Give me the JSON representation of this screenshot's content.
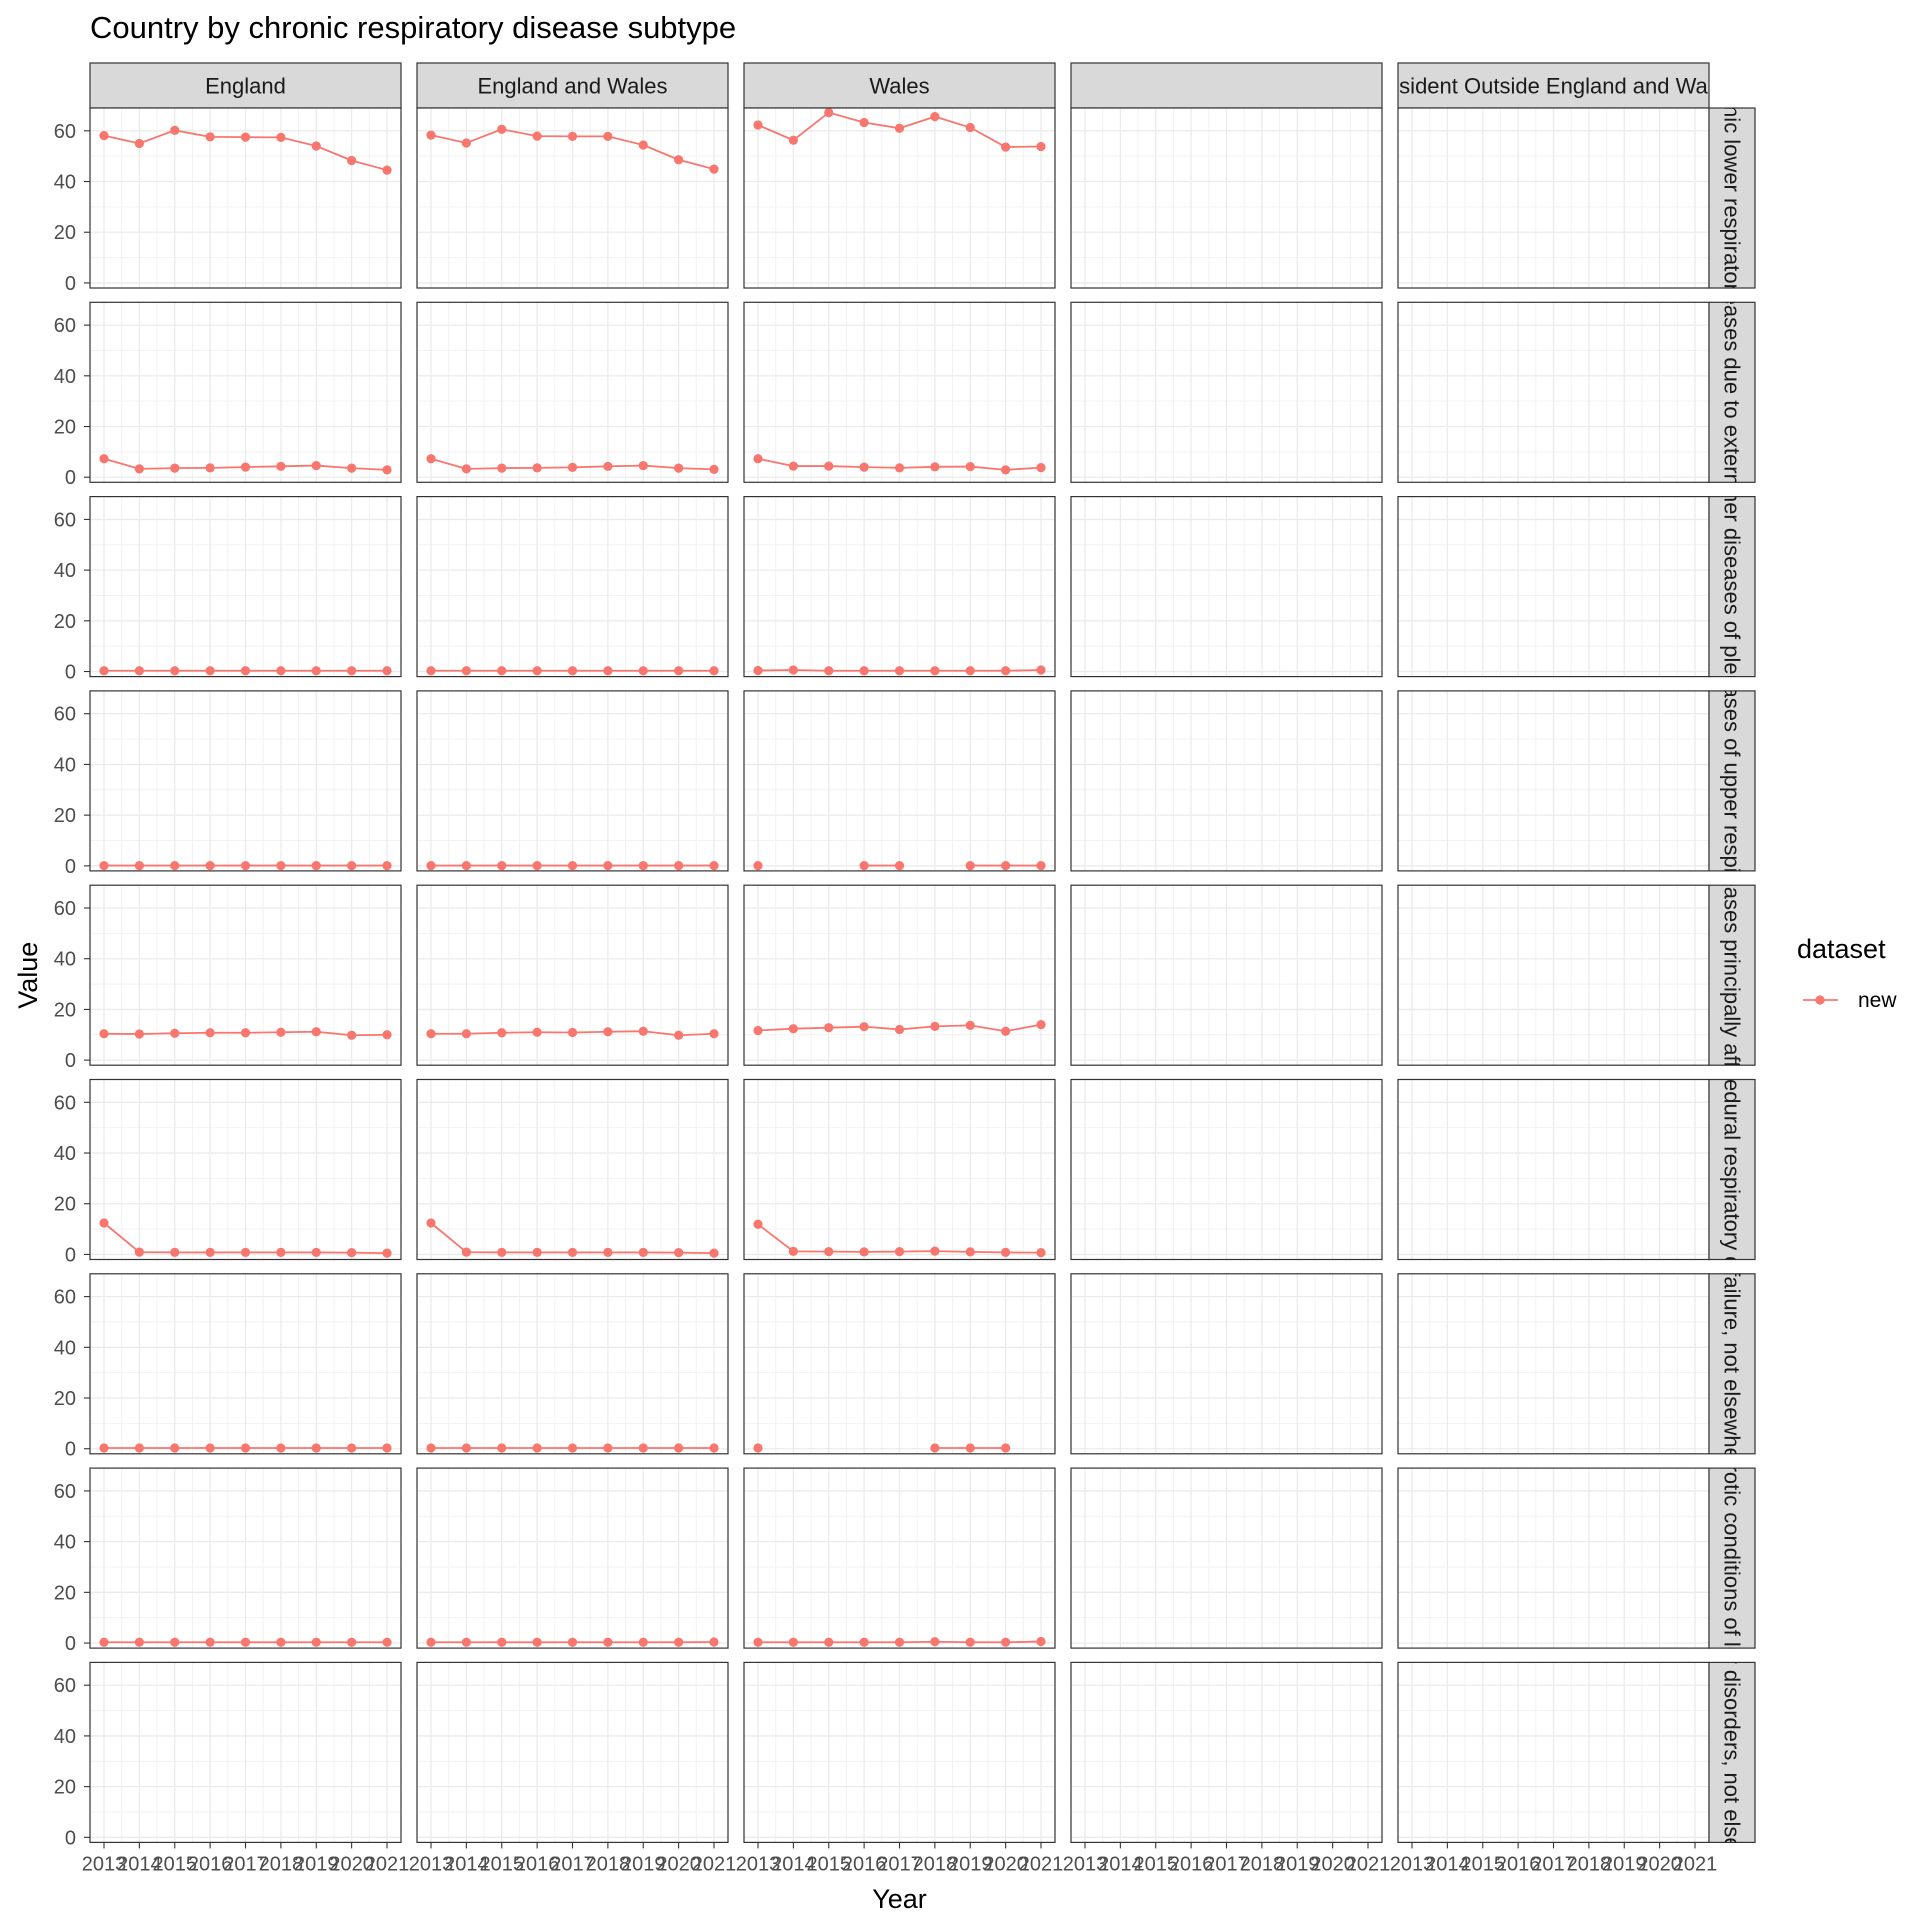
{
  "chart_data": {
    "type": "line",
    "title": "Country by chronic respiratory disease subtype",
    "xlabel": "Year",
    "ylabel": "Value",
    "x": [
      2013,
      2014,
      2015,
      2016,
      2017,
      2018,
      2019,
      2020,
      2021
    ],
    "x_tick_labels": [
      "2013",
      "2014",
      "2015",
      "2016",
      "2017",
      "2018",
      "2019",
      "2020",
      "2021"
    ],
    "y_ticks": [
      0,
      20,
      40,
      60
    ],
    "ylim": [
      -2,
      69
    ],
    "grid": true,
    "legend": {
      "title": "dataset",
      "position": "right",
      "entries": [
        "new"
      ]
    },
    "series_color": "#F8766D",
    "columns": [
      "England",
      "England and Wales",
      "Wales",
      "",
      "Resident Outside England and Wales"
    ],
    "rows": [
      {
        "label": "Other chronic lower respiratory diseases",
        "values": [
          [
            58.1,
            55.0,
            60.2,
            57.6,
            57.5,
            57.4,
            54.0,
            48.3,
            44.5
          ],
          [
            58.3,
            55.2,
            60.6,
            57.9,
            57.8,
            57.8,
            54.4,
            48.6,
            44.9
          ],
          [
            62.3,
            56.3,
            67.2,
            63.3,
            61.0,
            65.6,
            61.3,
            53.6,
            53.8
          ],
          [
            null,
            null,
            null,
            null,
            null,
            null,
            null,
            null,
            null
          ],
          [
            null,
            null,
            null,
            null,
            null,
            null,
            null,
            null,
            null
          ]
        ]
      },
      {
        "label": "Lung diseases due to external agents",
        "values": [
          [
            7.3,
            3.3,
            3.6,
            3.7,
            4.0,
            4.3,
            4.6,
            3.6,
            2.9
          ],
          [
            7.3,
            3.3,
            3.6,
            3.7,
            3.9,
            4.3,
            4.6,
            3.6,
            3.1
          ],
          [
            7.3,
            4.4,
            4.4,
            4.0,
            3.7,
            4.1,
            4.2,
            2.9,
            3.8
          ],
          [
            null,
            null,
            null,
            null,
            null,
            null,
            null,
            null,
            null
          ],
          [
            null,
            null,
            null,
            null,
            null,
            null,
            null,
            null,
            null
          ]
        ]
      },
      {
        "label": "Other diseases of pleura",
        "values": [
          [
            0.3,
            0.3,
            0.3,
            0.3,
            0.3,
            0.3,
            0.3,
            0.3,
            0.3
          ],
          [
            0.3,
            0.3,
            0.3,
            0.3,
            0.3,
            0.3,
            0.3,
            0.3,
            0.3
          ],
          [
            0.4,
            0.6,
            0.3,
            0.3,
            0.3,
            0.3,
            0.3,
            0.3,
            0.6
          ],
          [
            null,
            null,
            null,
            null,
            null,
            null,
            null,
            null,
            null
          ],
          [
            null,
            null,
            null,
            null,
            null,
            null,
            null,
            null,
            null
          ]
        ]
      },
      {
        "label": "Other diseases of upper respiratory tract",
        "values": [
          [
            0.1,
            0.1,
            0.1,
            0.1,
            0.1,
            0.1,
            0.1,
            0.1,
            0.1
          ],
          [
            0.1,
            0.1,
            0.1,
            0.1,
            0.1,
            0.1,
            0.1,
            0.1,
            0.1
          ],
          [
            0.1,
            null,
            null,
            0.1,
            0.1,
            null,
            0.1,
            0.1,
            0.1
          ],
          [
            null,
            null,
            null,
            null,
            null,
            null,
            null,
            null,
            null
          ],
          [
            null,
            null,
            null,
            null,
            null,
            null,
            null,
            null,
            null
          ]
        ]
      },
      {
        "label": "Other respiratory diseases principally affecting the interstitium",
        "values": [
          [
            10.4,
            10.3,
            10.6,
            10.8,
            10.8,
            11.0,
            11.2,
            9.8,
            10.0
          ],
          [
            10.4,
            10.4,
            10.8,
            11.0,
            10.9,
            11.2,
            11.4,
            9.8,
            10.4
          ],
          [
            11.7,
            12.4,
            12.8,
            13.2,
            12.1,
            13.3,
            13.7,
            11.4,
            14.0
          ],
          [
            null,
            null,
            null,
            null,
            null,
            null,
            null,
            null,
            null
          ],
          [
            null,
            null,
            null,
            null,
            null,
            null,
            null,
            null,
            null
          ]
        ]
      },
      {
        "label": "Postprocedural respiratory disorders",
        "values": [
          [
            12.4,
            0.9,
            0.8,
            0.8,
            0.8,
            0.8,
            0.8,
            0.7,
            0.5
          ],
          [
            12.4,
            0.9,
            0.8,
            0.8,
            0.8,
            0.8,
            0.8,
            0.7,
            0.5
          ],
          [
            11.9,
            1.2,
            1.1,
            1.0,
            1.1,
            1.3,
            1.0,
            0.8,
            0.7
          ],
          [
            null,
            null,
            null,
            null,
            null,
            null,
            null,
            null,
            null
          ],
          [
            null,
            null,
            null,
            null,
            null,
            null,
            null,
            null,
            null
          ]
        ]
      },
      {
        "label": "Respiratory failure, not elsewhere classified",
        "values": [
          [
            0.3,
            0.3,
            0.3,
            0.3,
            0.3,
            0.3,
            0.3,
            0.3,
            0.3
          ],
          [
            0.3,
            0.3,
            0.3,
            0.3,
            0.3,
            0.3,
            0.3,
            0.3,
            0.3
          ],
          [
            0.3,
            null,
            null,
            null,
            null,
            0.3,
            0.3,
            0.3,
            null
          ],
          [
            null,
            null,
            null,
            null,
            null,
            null,
            null,
            null,
            null
          ],
          [
            null,
            null,
            null,
            null,
            null,
            null,
            null,
            null,
            null
          ]
        ]
      },
      {
        "label": "Suppurative and necrotic conditions of lower respiratory tract",
        "values": [
          [
            0.3,
            0.3,
            0.3,
            0.3,
            0.3,
            0.3,
            0.3,
            0.3,
            0.3
          ],
          [
            0.3,
            0.3,
            0.3,
            0.3,
            0.3,
            0.3,
            0.3,
            0.3,
            0.4
          ],
          [
            0.3,
            0.3,
            0.3,
            0.3,
            0.3,
            0.5,
            0.3,
            0.3,
            0.6
          ],
          [
            null,
            null,
            null,
            null,
            null,
            null,
            null,
            null,
            null
          ],
          [
            null,
            null,
            null,
            null,
            null,
            null,
            null,
            null,
            null
          ]
        ]
      },
      {
        "label": "Other respiratory disorders, not elsewhere classified",
        "values": [
          [
            null,
            null,
            null,
            null,
            null,
            null,
            null,
            null,
            null
          ],
          [
            null,
            null,
            null,
            null,
            null,
            null,
            null,
            null,
            null
          ],
          [
            null,
            null,
            null,
            null,
            null,
            null,
            null,
            null,
            null
          ],
          [
            null,
            null,
            null,
            null,
            null,
            null,
            null,
            null,
            null
          ],
          [
            null,
            null,
            null,
            null,
            null,
            null,
            null,
            null,
            null
          ]
        ]
      }
    ]
  }
}
